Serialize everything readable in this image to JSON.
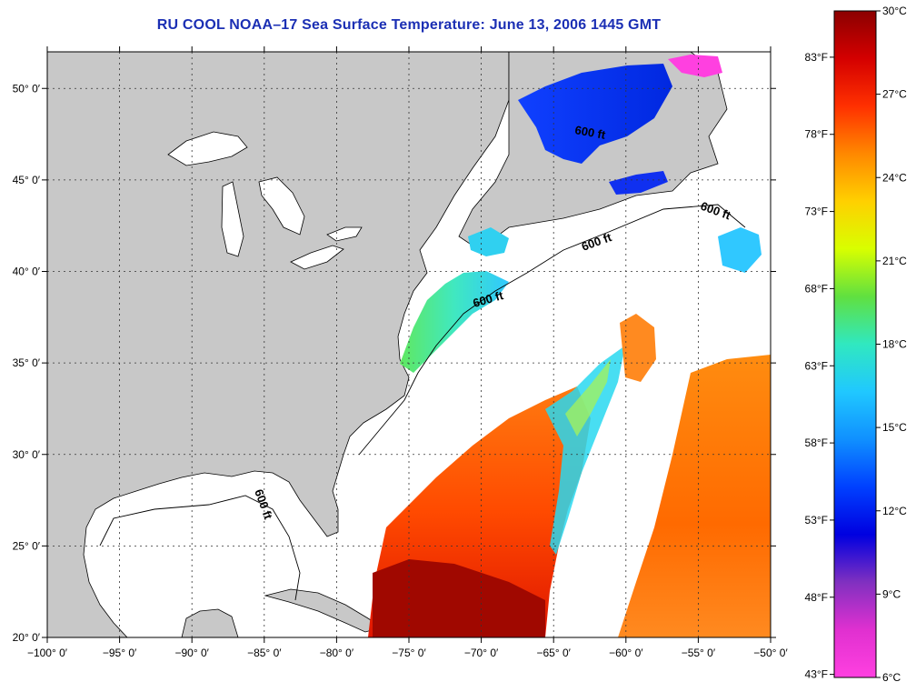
{
  "title": "RU COOL  NOAA–17  Sea Surface Temperature:  June 13, 2006 1445 GMT",
  "map": {
    "lon_range": [
      -100,
      -50
    ],
    "lat_range": [
      20,
      52
    ],
    "x_ticks": [
      {
        "value": -100,
        "label": "−100° 0′"
      },
      {
        "value": -95,
        "label": "−95° 0′"
      },
      {
        "value": -90,
        "label": "−90° 0′"
      },
      {
        "value": -85,
        "label": "−85° 0′"
      },
      {
        "value": -80,
        "label": "−80° 0′"
      },
      {
        "value": -75,
        "label": "−75° 0′"
      },
      {
        "value": -70,
        "label": "−70° 0′"
      },
      {
        "value": -65,
        "label": "−65° 0′"
      },
      {
        "value": -60,
        "label": "−60° 0′"
      },
      {
        "value": -55,
        "label": "−55° 0′"
      },
      {
        "value": -50,
        "label": "−50° 0′"
      }
    ],
    "y_ticks": [
      {
        "value": 20,
        "label": "20° 0′"
      },
      {
        "value": 25,
        "label": "25° 0′"
      },
      {
        "value": 30,
        "label": "30° 0′"
      },
      {
        "value": 35,
        "label": "35° 0′"
      },
      {
        "value": 40,
        "label": "40° 0′"
      },
      {
        "value": 45,
        "label": "45° 0′"
      },
      {
        "value": 50,
        "label": "50° 0′"
      }
    ],
    "contour_label": "600 ft",
    "colors": {
      "land": "#c8c8c8",
      "ocean_no_data": "#ffffff",
      "frame": "#000000",
      "title": "#1b2fb4"
    }
  },
  "colorbar": {
    "celsius_labels": [
      "30°C",
      "27°C",
      "24°C",
      "21°C",
      "18°C",
      "15°C",
      "12°C",
      "9°C",
      "6°C"
    ],
    "fahrenheit_labels": [
      "83°F",
      "78°F",
      "73°F",
      "68°F",
      "63°F",
      "58°F",
      "53°F",
      "48°F",
      "43°F"
    ],
    "stops": [
      "#8b0000",
      "#d40000",
      "#ff3000",
      "#ff8800",
      "#ffd000",
      "#d8ff00",
      "#60e040",
      "#30e8c0",
      "#20c8ff",
      "#1090ff",
      "#0040ff",
      "#0000e0",
      "#8030c0",
      "#e030d0",
      "#ff40e0"
    ]
  }
}
